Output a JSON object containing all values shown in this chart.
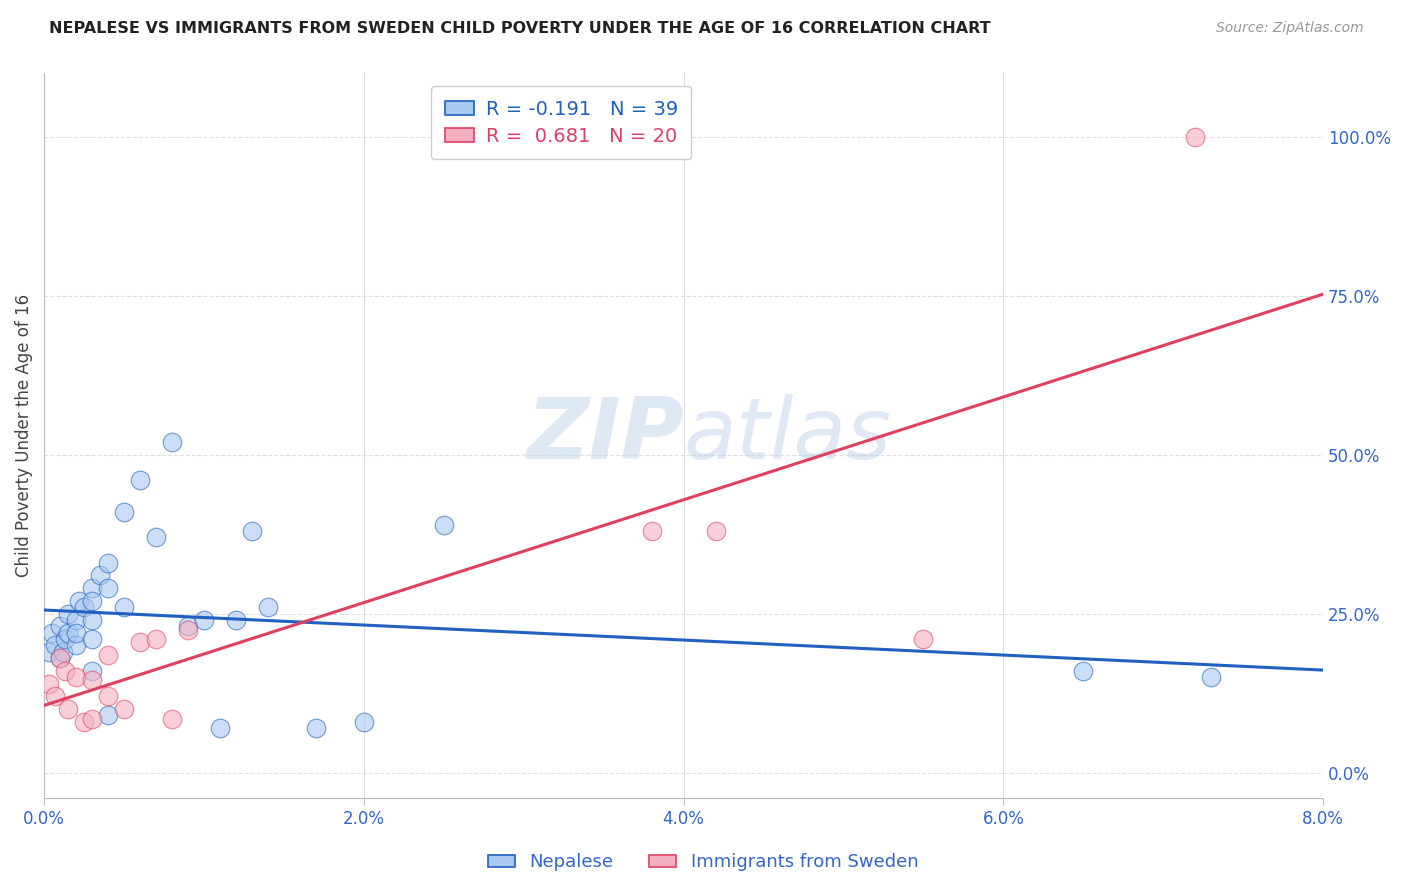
{
  "title": "NEPALESE VS IMMIGRANTS FROM SWEDEN CHILD POVERTY UNDER THE AGE OF 16 CORRELATION CHART",
  "source": "Source: ZipAtlas.com",
  "ylabel": "Child Poverty Under the Age of 16",
  "xlim": [
    0.0,
    0.08
  ],
  "ylim": [
    -0.04,
    1.1
  ],
  "xticks": [
    0.0,
    0.02,
    0.04,
    0.06,
    0.08
  ],
  "xtick_labels": [
    "0.0%",
    "2.0%",
    "4.0%",
    "6.0%",
    "8.0%"
  ],
  "yticks_right": [
    0.0,
    0.25,
    0.5,
    0.75,
    1.0
  ],
  "ytick_labels_right": [
    "0.0%",
    "25.0%",
    "50.0%",
    "75.0%",
    "100.0%"
  ],
  "color_blue": "#a8c8f0",
  "color_pink": "#f4b0c0",
  "line_color_blue": "#2060c0",
  "line_color_pink": "#e04060",
  "nepalese_label": "Nepalese",
  "sweden_label": "Immigrants from Sweden",
  "R_blue": "-0.191",
  "N_blue": 39,
  "R_pink": "0.681",
  "N_pink": 20,
  "blue_x": [
    0.0003,
    0.0005,
    0.0007,
    0.001,
    0.001,
    0.0012,
    0.0013,
    0.0015,
    0.0015,
    0.002,
    0.002,
    0.002,
    0.0022,
    0.0025,
    0.003,
    0.003,
    0.003,
    0.003,
    0.003,
    0.0035,
    0.004,
    0.004,
    0.004,
    0.005,
    0.005,
    0.006,
    0.007,
    0.008,
    0.009,
    0.01,
    0.011,
    0.012,
    0.013,
    0.014,
    0.017,
    0.02,
    0.025,
    0.065,
    0.073
  ],
  "blue_y": [
    0.19,
    0.22,
    0.2,
    0.23,
    0.18,
    0.19,
    0.21,
    0.25,
    0.22,
    0.24,
    0.2,
    0.22,
    0.27,
    0.26,
    0.29,
    0.27,
    0.24,
    0.21,
    0.16,
    0.31,
    0.33,
    0.29,
    0.09,
    0.26,
    0.41,
    0.46,
    0.37,
    0.52,
    0.23,
    0.24,
    0.07,
    0.24,
    0.38,
    0.26,
    0.07,
    0.08,
    0.39,
    0.16,
    0.15
  ],
  "pink_x": [
    0.0003,
    0.0007,
    0.001,
    0.0013,
    0.0015,
    0.002,
    0.0025,
    0.003,
    0.003,
    0.004,
    0.004,
    0.005,
    0.006,
    0.007,
    0.008,
    0.009,
    0.038,
    0.042,
    0.055,
    0.072
  ],
  "pink_y": [
    0.14,
    0.12,
    0.18,
    0.16,
    0.1,
    0.15,
    0.08,
    0.085,
    0.145,
    0.12,
    0.185,
    0.1,
    0.205,
    0.21,
    0.085,
    0.225,
    0.38,
    0.38,
    0.21,
    1.0
  ],
  "watermark_zip": "ZIP",
  "watermark_atlas": "atlas",
  "background_color": "#ffffff",
  "grid_color": "#e0e0e0",
  "watermark_color": "#d0dff0"
}
